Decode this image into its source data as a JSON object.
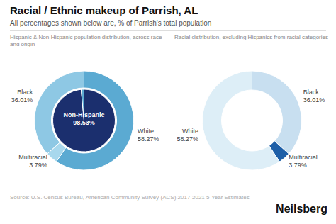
{
  "chart_data": [
    {
      "type": "pie",
      "title": "Racial / Ethnic makeup of Parrish, AL",
      "subtitle": "All percentages shown below are, % of Parrish's total population",
      "annotations": [
        "Hispanic & Non-Hispanic population distribution, across race and origin",
        "Source: U.S. Census Bureau, American Community Survey (ACS) 2017-2021 5-Year Estimates",
        "Neilsberg"
      ],
      "data_labels": true,
      "series": [
        {
          "categories": [
            "White",
            "Multiracial",
            "Black"
          ],
          "values": [
            58.27,
            3.79,
            36.01
          ],
          "value_labels": [
            "58.27%",
            "3.79%",
            "36.01%"
          ],
          "colors": [
            "#5baad2",
            "#a8d8ed",
            "#8ec8e4"
          ]
        },
        {
          "categories": [
            "Non-Hispanic",
            null
          ],
          "values": [
            98.53,
            1.47
          ],
          "value_labels": [
            "98.53%",
            null
          ],
          "colors": [
            "#1b2f6e",
            "#5baad2"
          ]
        }
      ]
    },
    {
      "type": "pie",
      "subtitle": "Racial distribution, excluding Hispanics from racial categories",
      "data_labels": true,
      "categories": [
        "Black",
        "Multiracial",
        "White"
      ],
      "values": [
        36.01,
        3.79,
        58.27
      ],
      "value_labels": [
        "36.01%",
        "3.79%",
        "58.27%"
      ],
      "colors": [
        "#c8dff0",
        "#1e5fa8",
        "#ddeef7"
      ]
    }
  ]
}
